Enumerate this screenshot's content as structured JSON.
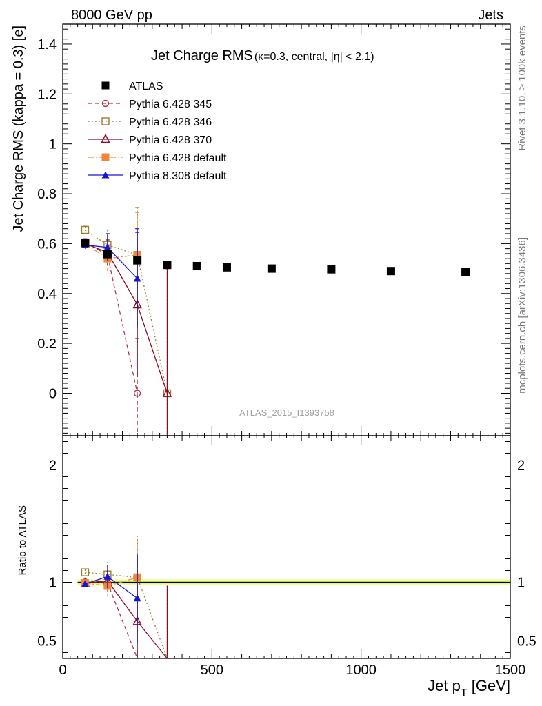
{
  "header": {
    "left": "8000 GeV pp",
    "right": "Jets"
  },
  "side_text": {
    "upper": "Rivet 3.1.10, ≥ 100k events",
    "lower": "mcplots.cern.ch [arXiv:1306.3436]"
  },
  "title": {
    "main": "Jet Charge RMS",
    "sub": "(κ=0.3, central, |η| < 2.1)"
  },
  "analysis_label": "ATLAS_2015_I1393758",
  "chart_data": {
    "type": "scatter",
    "title": "Jet Charge RMS (κ=0.3, central, |η| < 2.1)",
    "xlabel": "Jet p_T [GeV]",
    "ylabel": "Jet Charge RMS (kappa = 0.3) [e]",
    "ratio_ylabel": "Ratio to ATLAS",
    "xlim": [
      0,
      1500
    ],
    "ylim": [
      -0.17,
      1.48
    ],
    "ratio_ylim": [
      0.35,
      2.25
    ],
    "x_ticks": [
      0,
      500,
      1000,
      1500
    ],
    "y_ticks": [
      0,
      0.2,
      0.4,
      0.6,
      0.8,
      1,
      1.2,
      1.4
    ],
    "ratio_ticks": [
      0.5,
      1,
      2
    ],
    "legend_position": "top-left",
    "series": [
      {
        "name": "ATLAS",
        "color": "#000000",
        "marker": "filled-square",
        "line": "none",
        "x": [
          75,
          150,
          250,
          350,
          450,
          550,
          700,
          900,
          1100,
          1350
        ],
        "y": [
          0.604,
          0.558,
          0.533,
          0.515,
          0.51,
          0.505,
          0.5,
          0.497,
          0.49,
          0.486
        ]
      },
      {
        "name": "Pythia 6.428 345",
        "color": "#b5334d",
        "marker": "open-circle",
        "line": "dashed",
        "x": [
          75,
          150,
          250
        ],
        "y": [
          0.605,
          0.555,
          0.0
        ],
        "err": [
          0.015,
          0.04,
          0.22
        ]
      },
      {
        "name": "Pythia 6.428 346",
        "color": "#9c7d2f",
        "marker": "open-square",
        "line": "dotted",
        "x": [
          75,
          150,
          250,
          350
        ],
        "y": [
          0.655,
          0.595,
          0.555,
          0.0
        ],
        "err": [
          0.015,
          0.06,
          0.19,
          0.5
        ]
      },
      {
        "name": "Pythia 6.428 370",
        "color": "#8b0a1f",
        "marker": "open-triangle",
        "line": "solid",
        "x": [
          75,
          150,
          250,
          350
        ],
        "y": [
          0.6,
          0.565,
          0.355,
          0.0
        ],
        "err": [
          0.015,
          0.05,
          0.29,
          0.5
        ]
      },
      {
        "name": "Pythia 6.428 default",
        "color": "#f4843c",
        "marker": "filled-square",
        "line": "dashdot",
        "x": [
          75,
          150,
          250
        ],
        "y": [
          0.6,
          0.54,
          0.555
        ],
        "err": [
          0.015,
          0.05,
          0.17
        ]
      },
      {
        "name": "Pythia 8.308 default",
        "color": "#1515d8",
        "marker": "filled-triangle",
        "line": "solid",
        "x": [
          75,
          150,
          250
        ],
        "y": [
          0.595,
          0.585,
          0.46
        ],
        "err": [
          0.015,
          0.055,
          0.2
        ]
      }
    ]
  }
}
